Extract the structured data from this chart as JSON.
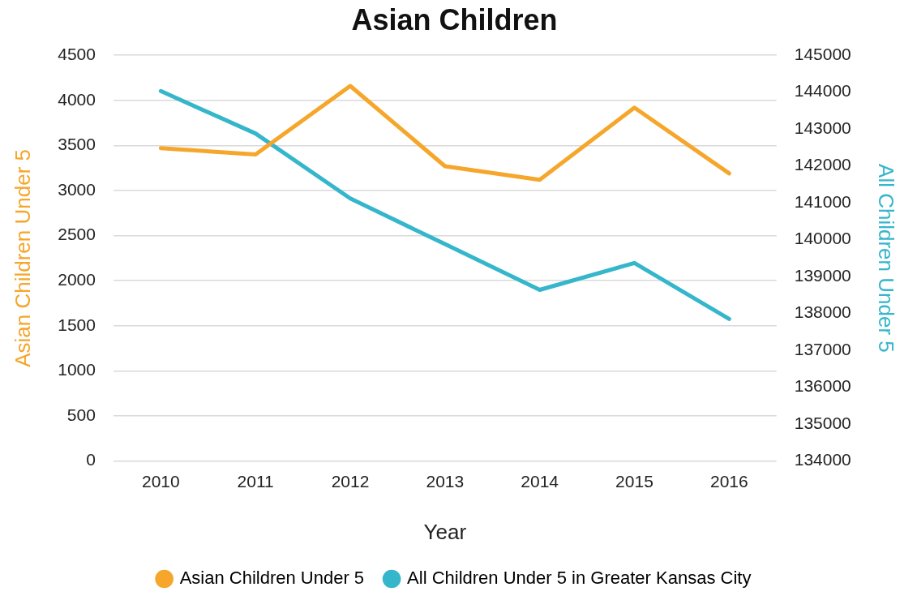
{
  "chart_data": {
    "type": "line",
    "title": "Asian Children",
    "xlabel": "Year",
    "ylabel": "Asian Children Under 5",
    "y2label": "All Children Under 5",
    "categories": [
      "2010",
      "2011",
      "2012",
      "2013",
      "2014",
      "2015",
      "2016"
    ],
    "series": [
      {
        "name": "Asian Children Under 5",
        "color": "#f5a62b",
        "values": [
          3470,
          3400,
          4160,
          3270,
          3120,
          3920,
          3190
        ]
      },
      {
        "name": "All Children Under 5 in Greater Kansas City",
        "color": "#35b6cb",
        "axis": "y2",
        "values": [
          144030,
          142880,
          141120,
          139880,
          138640,
          139370,
          137850
        ]
      }
    ],
    "ylim": [
      0,
      4500
    ],
    "yticks": [
      0,
      500,
      1000,
      1500,
      2000,
      2500,
      3000,
      3500,
      4000,
      4500
    ],
    "y2lim": [
      134000,
      145000
    ],
    "y2ticks": [
      134000,
      135000,
      136000,
      137000,
      138000,
      139000,
      140000,
      141000,
      142000,
      143000,
      144000,
      145000
    ],
    "grid": "y",
    "legend": "bottom",
    "marker": "none",
    "line_style": "solid"
  }
}
